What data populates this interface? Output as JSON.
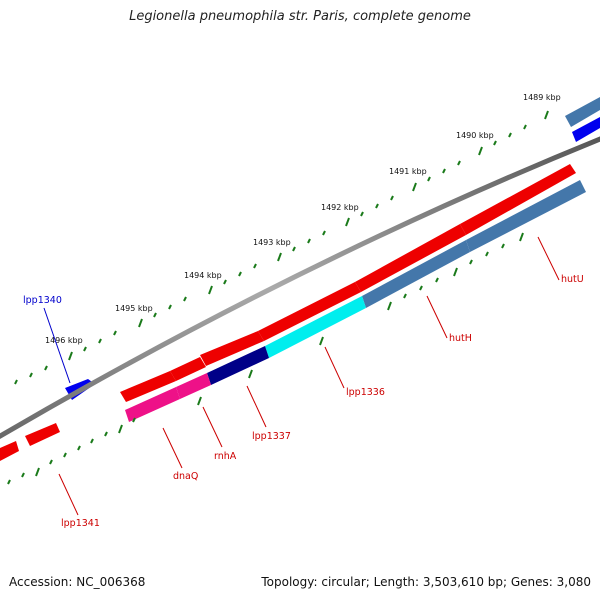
{
  "title": "Legionella pneumophila str. Paris, complete genome",
  "accession": "Accession: NC_006368",
  "summary": "Topology: circular; Length: 3,503,610 bp; Genes: 3,080",
  "ticks": [
    "1489 kbp",
    "1490 kbp",
    "1491 kbp",
    "1492 kbp",
    "1493 kbp",
    "1494 kbp",
    "1495 kbp",
    "1496 kbp"
  ],
  "genes": [
    "lpp1340",
    "lpp1341",
    "dnaQ",
    "rnhA",
    "lpp1337",
    "lpp1336",
    "hutH",
    "hutU"
  ],
  "colors": {
    "backbone": "#888888",
    "cds_red": "#ee0000",
    "rrna_pink": "#ee1188",
    "navy": "#000088",
    "cyan": "#00eeee",
    "steel": "#4477aa",
    "blue": "#0000ee",
    "tick_green": "#1a7a1a",
    "label_red": "#cc0000",
    "label_blue": "#0000cc"
  }
}
